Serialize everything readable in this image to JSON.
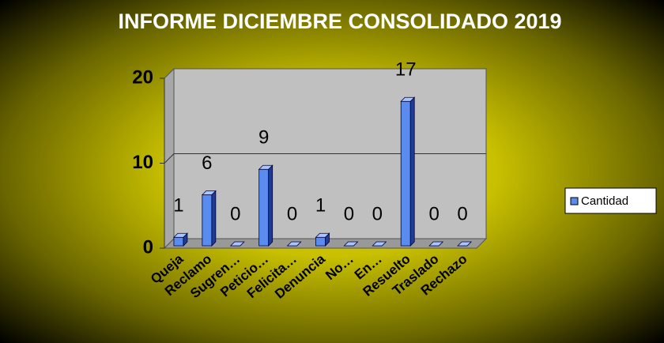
{
  "chart_data": {
    "type": "bar3d",
    "title": "INFORME DICIEMBRE CONSOLIDADO 2019",
    "categories": [
      "Queja",
      "Reclamo",
      "Sugren…",
      "Peticio…",
      "Felicita…",
      "Denuncia",
      "No…",
      "En…",
      "Resuelto",
      "Traslado",
      "Rechazo"
    ],
    "series": [
      {
        "name": "Cantidad",
        "color": "#5a8cf0",
        "values": [
          1,
          6,
          0,
          9,
          0,
          1,
          0,
          0,
          17,
          0,
          0
        ]
      }
    ],
    "ylim": [
      0,
      20
    ],
    "yticks": [
      0,
      10,
      20
    ],
    "grid": true,
    "legend": "right"
  }
}
